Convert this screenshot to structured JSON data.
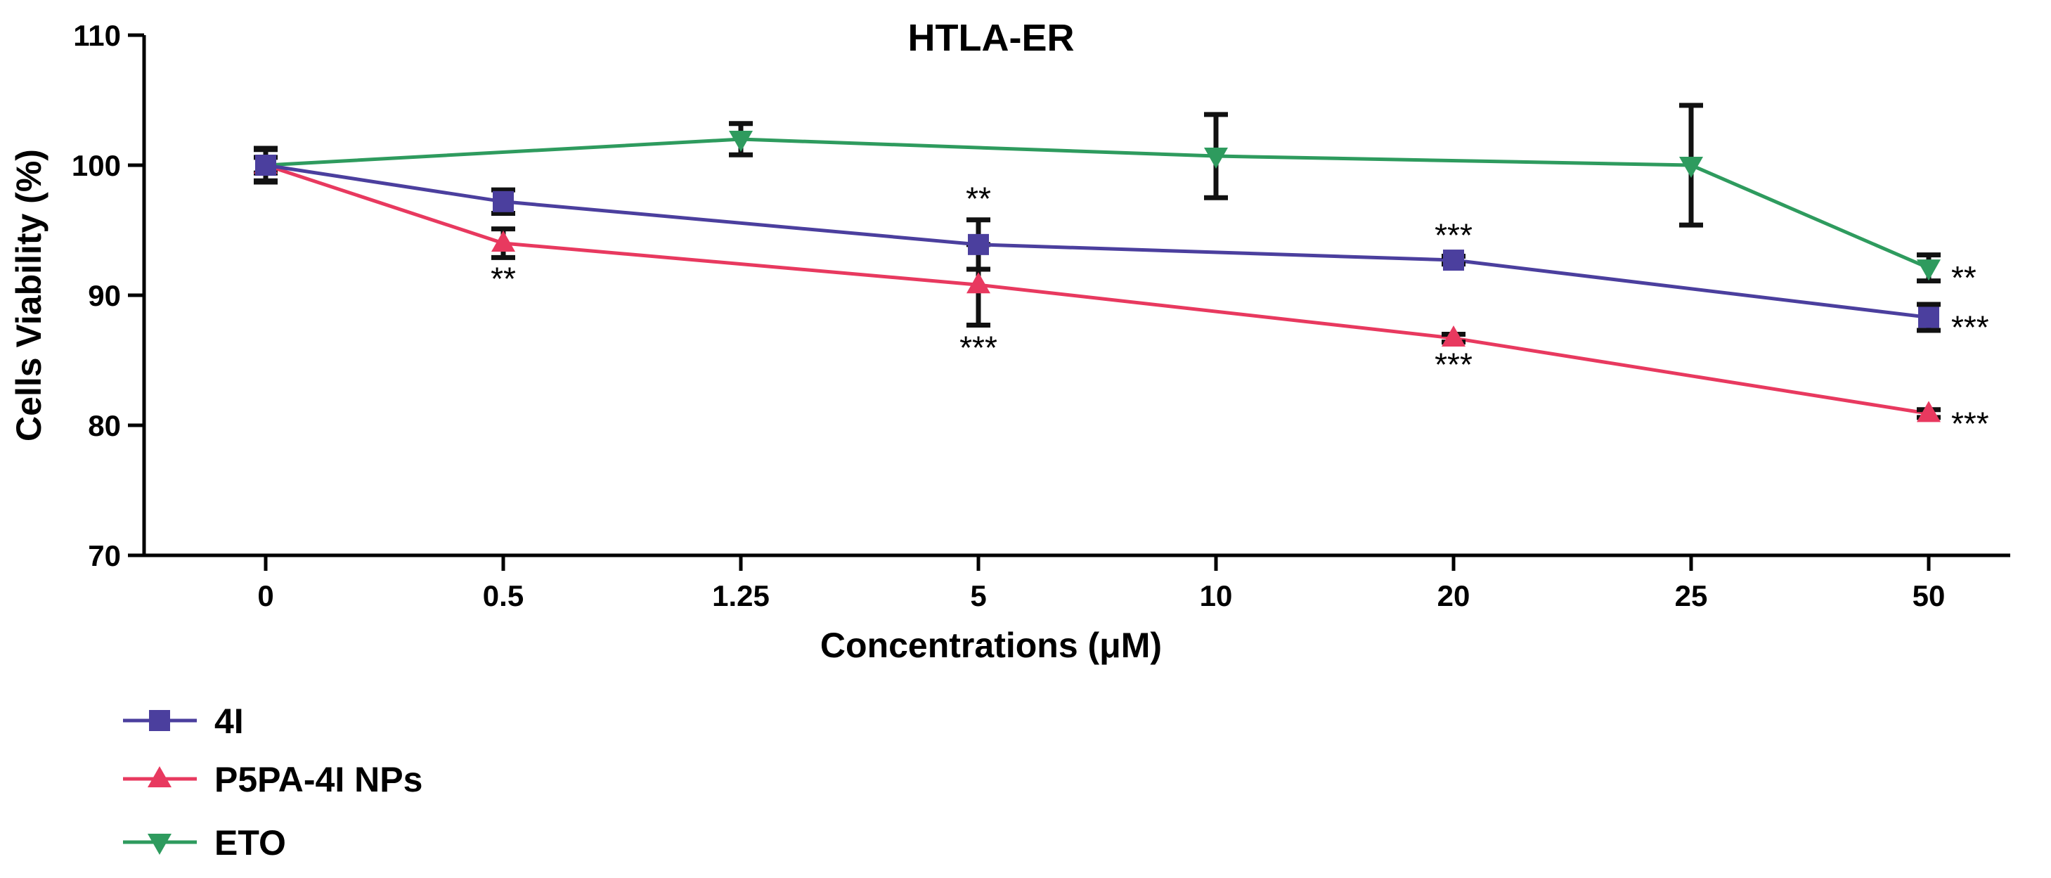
{
  "chart_data": {
    "type": "line",
    "title": "HTLA-ER",
    "xlabel": "Concentrations (μM)",
    "ylabel": "Cells Viability (%)",
    "categories": [
      "0",
      "0.5",
      "1.25",
      "5",
      "10",
      "20",
      "25",
      "50"
    ],
    "ylim": [
      70,
      110
    ],
    "yticks": [
      70,
      80,
      90,
      100,
      110
    ],
    "legend_position": "bottom-left",
    "series": [
      {
        "name": "4I",
        "color": "#4B3F9E",
        "marker": "square",
        "points": [
          {
            "cat": "0",
            "y": 100.0,
            "err": 1.2
          },
          {
            "cat": "0.5",
            "y": 97.2,
            "err": 0.9
          },
          {
            "cat": "5",
            "y": 93.9,
            "err": 1.9
          },
          {
            "cat": "20",
            "y": 92.7,
            "err": 0.3
          },
          {
            "cat": "50",
            "y": 88.3,
            "err": 1.0
          }
        ]
      },
      {
        "name": "P5PA-4I NPs",
        "color": "#E8395F",
        "marker": "triangle-up",
        "points": [
          {
            "cat": "0",
            "y": 100.0,
            "err": 0.6
          },
          {
            "cat": "0.5",
            "y": 94.0,
            "err": 1.1
          },
          {
            "cat": "5",
            "y": 90.8,
            "err": 3.1
          },
          {
            "cat": "20",
            "y": 86.7,
            "err": 0.3
          },
          {
            "cat": "50",
            "y": 80.9,
            "err": 0.3
          }
        ]
      },
      {
        "name": "ETO",
        "color": "#2E9B5E",
        "marker": "triangle-down",
        "points": [
          {
            "cat": "0",
            "y": 100.0,
            "err": 1.3
          },
          {
            "cat": "1.25",
            "y": 102.0,
            "err": 1.2
          },
          {
            "cat": "10",
            "y": 100.7,
            "err": 3.2
          },
          {
            "cat": "25",
            "y": 100.0,
            "err": 4.6
          },
          {
            "cat": "50",
            "y": 92.1,
            "err": 1.0
          }
        ]
      }
    ],
    "annotations": [
      {
        "text": "**",
        "cat": "0.5",
        "y": 93.0,
        "position": "below"
      },
      {
        "text": "**",
        "cat": "5",
        "y": 95.8,
        "position": "above"
      },
      {
        "text": "***",
        "cat": "5",
        "y": 87.7,
        "position": "below"
      },
      {
        "text": "***",
        "cat": "20",
        "y": 93.0,
        "position": "above"
      },
      {
        "text": "***",
        "cat": "20",
        "y": 86.4,
        "position": "below"
      },
      {
        "text": "**",
        "cat": "50",
        "y": 92.1,
        "position": "right"
      },
      {
        "text": "***",
        "cat": "50",
        "y": 88.3,
        "position": "right"
      },
      {
        "text": "***",
        "cat": "50",
        "y": 80.9,
        "position": "right"
      }
    ]
  }
}
